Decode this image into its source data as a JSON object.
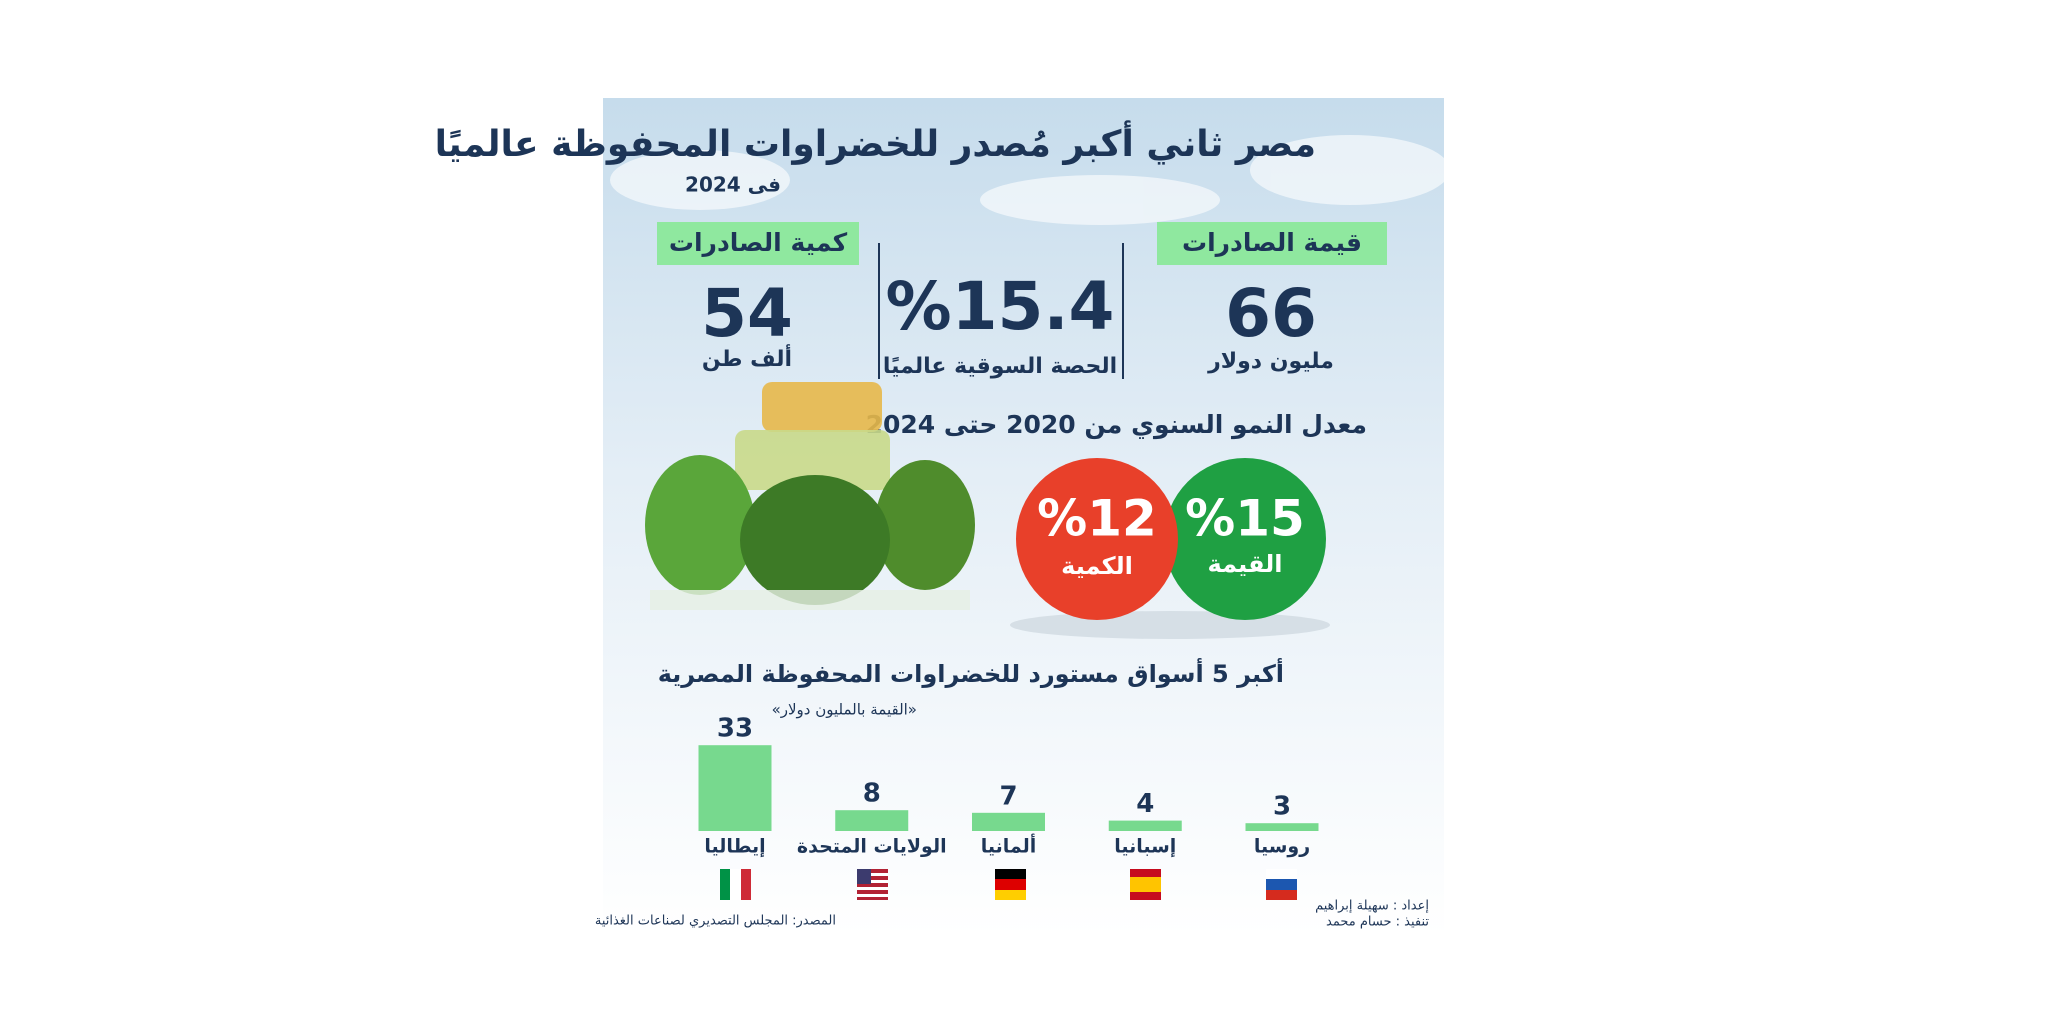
{
  "header": {
    "title": "مصر ثاني أكبر مُصدر للخضراوات المحفوظة عالميًا",
    "subtitle": "فى 2024"
  },
  "stats": [
    {
      "label": "قيمة الصادرات",
      "value": "66",
      "unit": "مليون دولار"
    },
    {
      "value": "%15.4",
      "unit": "الحصة السوقية عالميًا"
    },
    {
      "label": "كمية الصادرات",
      "value": "54",
      "unit": "ألف طن"
    }
  ],
  "growth": {
    "title": "معدل النمو السنوي من 2020 حتى 2024",
    "items": [
      {
        "value": "%15",
        "label": "القيمة",
        "color": "#1fa043"
      },
      {
        "value": "%12",
        "label": "الكمية",
        "color": "#e8402a"
      }
    ]
  },
  "chart_data": {
    "type": "bar",
    "title": "أكبر 5 أسواق مستورد للخضراوات المحفوظة المصرية",
    "subtitle": "«القيمة بالمليون دولار»",
    "categories": [
      "روسيا",
      "إسبانيا",
      "ألمانيا",
      "الولايات المتحدة",
      "إيطاليا"
    ],
    "values": [
      3,
      4,
      7,
      8,
      33
    ],
    "color": "#77d98e"
  },
  "credits": [
    "إعداد : سهيلة إبراهيم",
    "تنفيذ : حسام محمد"
  ],
  "source": "المصدر: المجلس التصديري لصناعات الغذائية"
}
